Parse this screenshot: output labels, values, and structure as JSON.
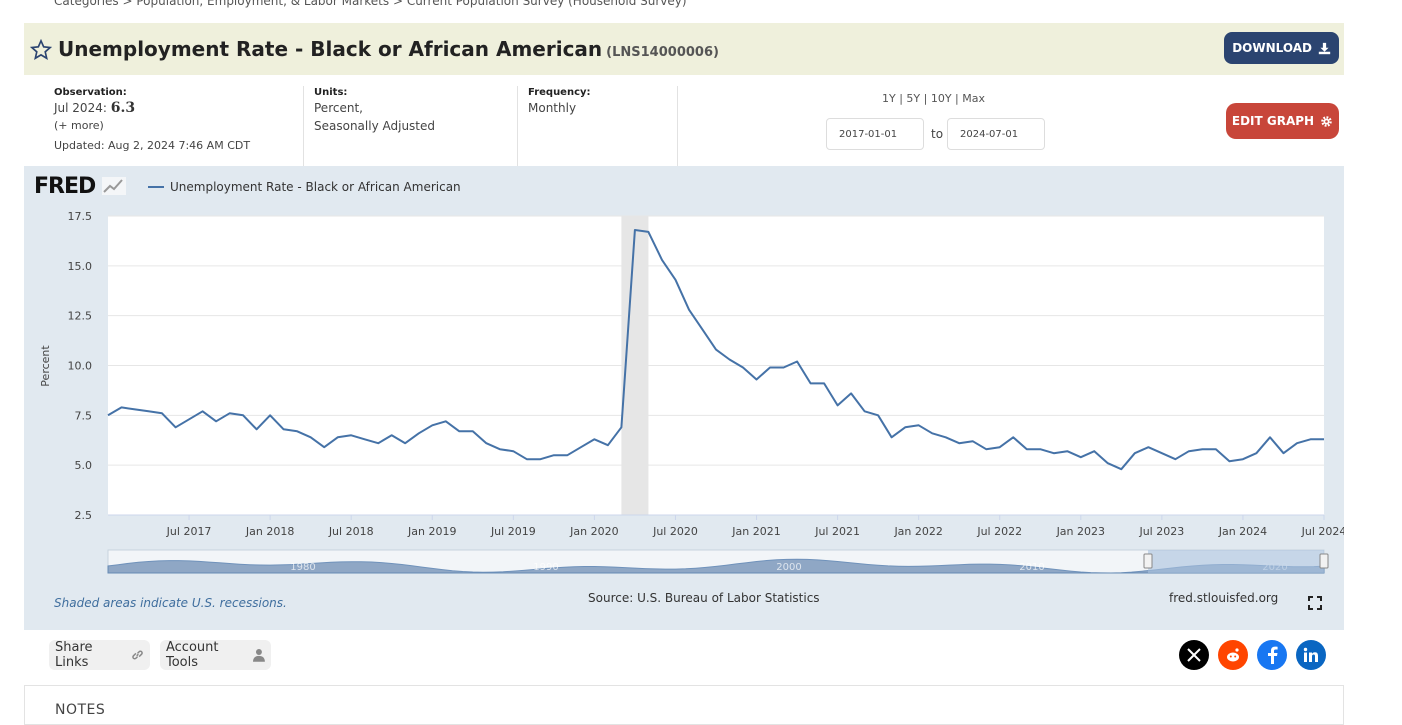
{
  "breadcrumb": "Categories > Population, Employment, & Labor Markets > Current Population Survey (Household Survey)",
  "title": "Unemployment Rate - Black or African American",
  "series_id": "(LNS14000006)",
  "download_label": "DOWNLOAD",
  "observation": {
    "label": "Observation:",
    "period": "Jul 2024:",
    "value": "6.3",
    "more": "(+ more)",
    "updated": "Updated: Aug 2, 2024 7:46 AM CDT"
  },
  "units": {
    "label": "Units:",
    "line1": "Percent,",
    "line2": "Seasonally Adjusted"
  },
  "frequency": {
    "label": "Frequency:",
    "value": "Monthly"
  },
  "range_links": "1Y | 5Y | 10Y | Max",
  "date_start": "2017-01-01",
  "date_to": "to",
  "date_end": "2024-07-01",
  "edit_graph_label": "EDIT GRAPH",
  "fred_logo": "FRED",
  "recession_note": "Shaded areas indicate U.S. recessions.",
  "source": "Source: U.S. Bureau of Labor Statistics",
  "site": "fred.stlouisfed.org",
  "share_links_label": "Share Links",
  "account_tools_label": "Account Tools",
  "notes_title": "NOTES",
  "colors": {
    "line": "#4572a7",
    "recession": "#e6e6e6",
    "download": "#2b4470",
    "edit": "#c8463a"
  },
  "chart_data": {
    "type": "line",
    "ylabel": "Percent",
    "ylim": [
      2.5,
      17.5
    ],
    "yticks": [
      "17.5",
      "15.0",
      "12.5",
      "10.0",
      "7.5",
      "5.0",
      "2.5"
    ],
    "xticks": [
      "Jul 2017",
      "Jan 2018",
      "Jul 2018",
      "Jan 2019",
      "Jul 2019",
      "Jan 2020",
      "Jul 2020",
      "Jan 2021",
      "Jul 2021",
      "Jan 2022",
      "Jul 2022",
      "Jan 2023",
      "Jul 2023",
      "Jan 2024",
      "Jul 2024"
    ],
    "x_start": "2017-01",
    "x_end": "2024-07",
    "recession": [
      "2020-03",
      "2020-04"
    ],
    "navigator_labels": [
      "1980",
      "1990",
      "2000",
      "2010",
      "2020"
    ],
    "series": [
      {
        "name": "Unemployment Rate - Black or African American",
        "values": [
          7.5,
          7.9,
          7.8,
          7.7,
          7.6,
          6.9,
          7.3,
          7.7,
          7.2,
          7.6,
          7.5,
          6.8,
          7.5,
          6.8,
          6.7,
          6.4,
          5.9,
          6.4,
          6.5,
          6.3,
          6.1,
          6.5,
          6.1,
          6.6,
          7.0,
          7.2,
          6.7,
          6.7,
          6.1,
          5.8,
          5.7,
          5.3,
          5.3,
          5.5,
          5.5,
          5.9,
          6.3,
          6.0,
          6.9,
          16.8,
          16.7,
          15.3,
          14.3,
          12.8,
          11.8,
          10.8,
          10.3,
          9.9,
          9.3,
          9.9,
          9.9,
          10.2,
          9.1,
          9.1,
          8.0,
          8.6,
          7.7,
          7.5,
          6.4,
          6.9,
          7.0,
          6.6,
          6.4,
          6.1,
          6.2,
          5.8,
          5.9,
          6.4,
          5.8,
          5.8,
          5.6,
          5.7,
          5.4,
          5.7,
          5.1,
          4.8,
          5.6,
          5.9,
          5.6,
          5.3,
          5.7,
          5.8,
          5.8,
          5.2,
          5.3,
          5.6,
          6.4,
          5.6,
          6.1,
          6.3,
          6.3
        ]
      }
    ]
  }
}
